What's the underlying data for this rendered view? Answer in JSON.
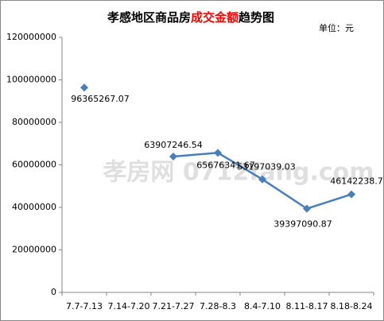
{
  "chart_data": {
    "type": "line",
    "title": [
      "孝感地区商品房",
      "成交金额",
      "趋势图"
    ],
    "title_colors": [
      "#000000",
      "#ff0000",
      "#000000"
    ],
    "unit_note": "单位：元",
    "watermark": "孝房网 0712fang.com",
    "categories": [
      "7.7-7.13",
      "7.14-7.20",
      "7.21-7.27",
      "7.28-8.3",
      "8.4-7.10",
      "8.11-8.17",
      "8.18-8.24"
    ],
    "series": [
      {
        "name": "成交金额",
        "color": "#4a7ebb",
        "values": [
          96365267.07,
          null,
          63907246.54,
          65676341.67,
          53197039.03,
          39397090.87,
          46142238.77
        ]
      }
    ],
    "ylim": [
      0,
      120000000
    ],
    "yticks": [
      0,
      20000000,
      40000000,
      60000000,
      80000000,
      100000000,
      120000000
    ],
    "grid": false,
    "legend": false
  }
}
